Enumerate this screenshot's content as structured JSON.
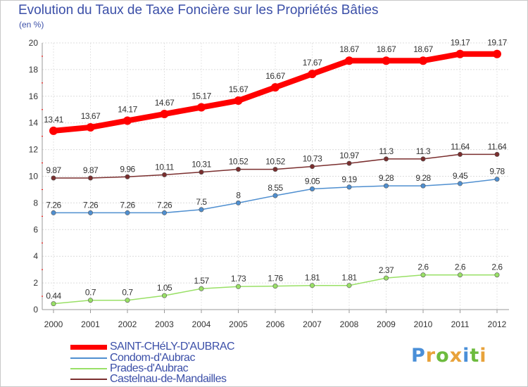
{
  "chart_data": {
    "type": "line",
    "title": "Evolution du Taux de Taxe Foncière sur les Propriétés Bâties",
    "subtitle": "(en %)",
    "x": [
      "2000",
      "2001",
      "2002",
      "2003",
      "2004",
      "2005",
      "2006",
      "2007",
      "2008",
      "2009",
      "2010",
      "2011",
      "2012"
    ],
    "ylim": [
      0,
      20
    ],
    "yticks": [
      0,
      2,
      4,
      6,
      8,
      10,
      12,
      14,
      16,
      18,
      20
    ],
    "grid": true,
    "legend_position": "bottom-left",
    "series": [
      {
        "name": "SAINT-CHéLY-D'AUBRAC",
        "color": "#ff0000",
        "values": [
          13.41,
          13.67,
          14.17,
          14.67,
          15.17,
          15.67,
          16.67,
          17.67,
          18.67,
          18.67,
          18.67,
          19.17,
          19.17
        ],
        "labels": [
          "13.41",
          "13.67",
          "14.17",
          "14.67",
          "15.17",
          "15.67",
          "16.67",
          "17.67",
          "18.67",
          "18.67",
          "18.67",
          "19.17",
          "19.17"
        ]
      },
      {
        "name": "Condom-d'Aubrac",
        "color": "#4f8fd0",
        "values": [
          7.26,
          7.26,
          7.26,
          7.26,
          7.5,
          8,
          8.55,
          9.05,
          9.19,
          9.28,
          9.28,
          9.45,
          9.78
        ],
        "labels": [
          "7.26",
          "7.26",
          "7.26",
          "7.26",
          "7.5",
          "8",
          "8.55",
          "9.05",
          "9.19",
          "9.28",
          "9.28",
          "9.45",
          "9.78"
        ]
      },
      {
        "name": "Prades-d'Aubrac",
        "color": "#99e066",
        "values": [
          0.44,
          0.7,
          0.7,
          1.05,
          1.57,
          1.73,
          1.76,
          1.81,
          1.81,
          2.37,
          2.6,
          2.6,
          2.6
        ],
        "labels": [
          "0.44",
          "0.7",
          "0.7",
          "1.05",
          "1.57",
          "1.73",
          "1.76",
          "1.81",
          "1.81",
          "2.37",
          "2.6",
          "2.6",
          "2.6"
        ]
      },
      {
        "name": "Castelnau-de-Mandailles",
        "color": "#7a2e2e",
        "values": [
          9.87,
          9.87,
          9.96,
          10.11,
          10.31,
          10.52,
          10.52,
          10.73,
          10.97,
          11.3,
          11.3,
          11.64,
          11.64
        ],
        "labels": [
          "9.87",
          "9.87",
          "9.96",
          "10.11",
          "10.31",
          "10.52",
          "10.52",
          "10.73",
          "10.97",
          "11.3",
          "11.3",
          "11.64",
          "11.64"
        ]
      }
    ]
  },
  "logo": {
    "letters": [
      "P",
      "r",
      "o",
      "x",
      "i",
      "t",
      "i"
    ],
    "colors": [
      "#4a8fd8",
      "#e8a23a",
      "#6dbb3e",
      "#e8a23a",
      "#4a8fd8",
      "#6dbb3e",
      "#e8a23a"
    ]
  }
}
